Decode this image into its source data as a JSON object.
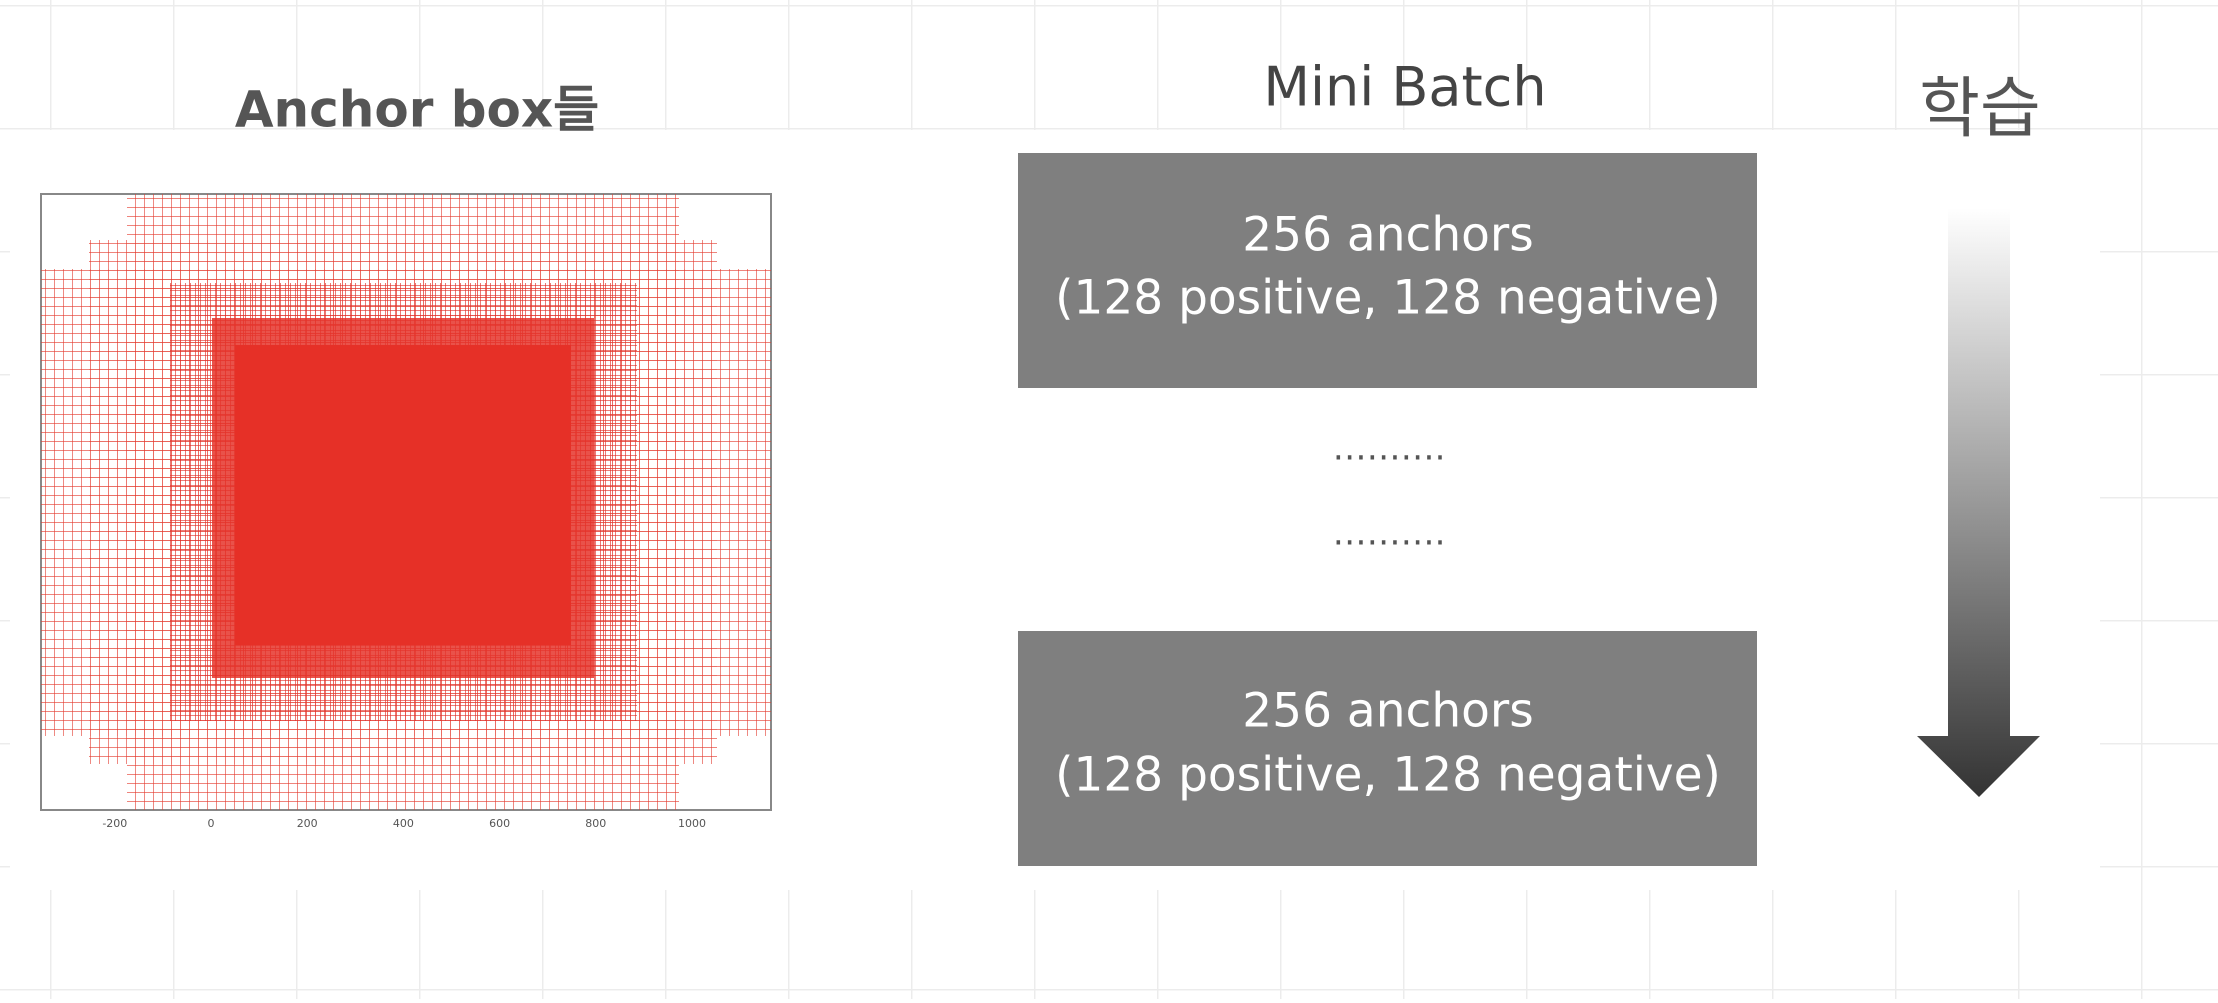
{
  "left": {
    "title": "Anchor box들",
    "axis_ticks": [
      -200,
      0,
      200,
      400,
      600,
      800,
      1000
    ]
  },
  "right": {
    "title": "Mini Batch",
    "batches": [
      {
        "line1": "256 anchors",
        "line2": "(128 positive, 128 negative)"
      },
      {
        "line1": "256 anchors",
        "line2": "(128 positive, 128 negative)"
      }
    ],
    "ellipses": [
      "……….",
      "………."
    ],
    "arrow_label": "학습"
  }
}
